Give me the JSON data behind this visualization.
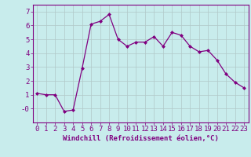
{
  "x": [
    0,
    1,
    2,
    3,
    4,
    5,
    6,
    7,
    8,
    9,
    10,
    11,
    12,
    13,
    14,
    15,
    16,
    17,
    18,
    19,
    20,
    21,
    22,
    23
  ],
  "y": [
    1.1,
    1.0,
    1.0,
    -0.2,
    -0.1,
    2.9,
    6.1,
    6.3,
    6.8,
    5.0,
    4.5,
    4.8,
    4.8,
    5.2,
    4.5,
    5.5,
    5.3,
    4.5,
    4.1,
    4.2,
    3.5,
    2.5,
    1.9,
    1.5
  ],
  "line_color": "#800080",
  "marker_color": "#800080",
  "bg_color": "#c8ecec",
  "grid_color": "#b0c8c8",
  "xlabel": "Windchill (Refroidissement éolien,°C)",
  "xlim": [
    -0.5,
    23.5
  ],
  "ylim": [
    -1.0,
    7.5
  ],
  "yticks": [
    0,
    1,
    2,
    3,
    4,
    5,
    6,
    7
  ],
  "ytick_labels": [
    "-0",
    "1",
    "2",
    "3",
    "4",
    "5",
    "6",
    "7"
  ],
  "xticks": [
    0,
    1,
    2,
    3,
    4,
    5,
    6,
    7,
    8,
    9,
    10,
    11,
    12,
    13,
    14,
    15,
    16,
    17,
    18,
    19,
    20,
    21,
    22,
    23
  ],
  "tick_font_size": 6.5,
  "xlabel_font_size": 6.5
}
